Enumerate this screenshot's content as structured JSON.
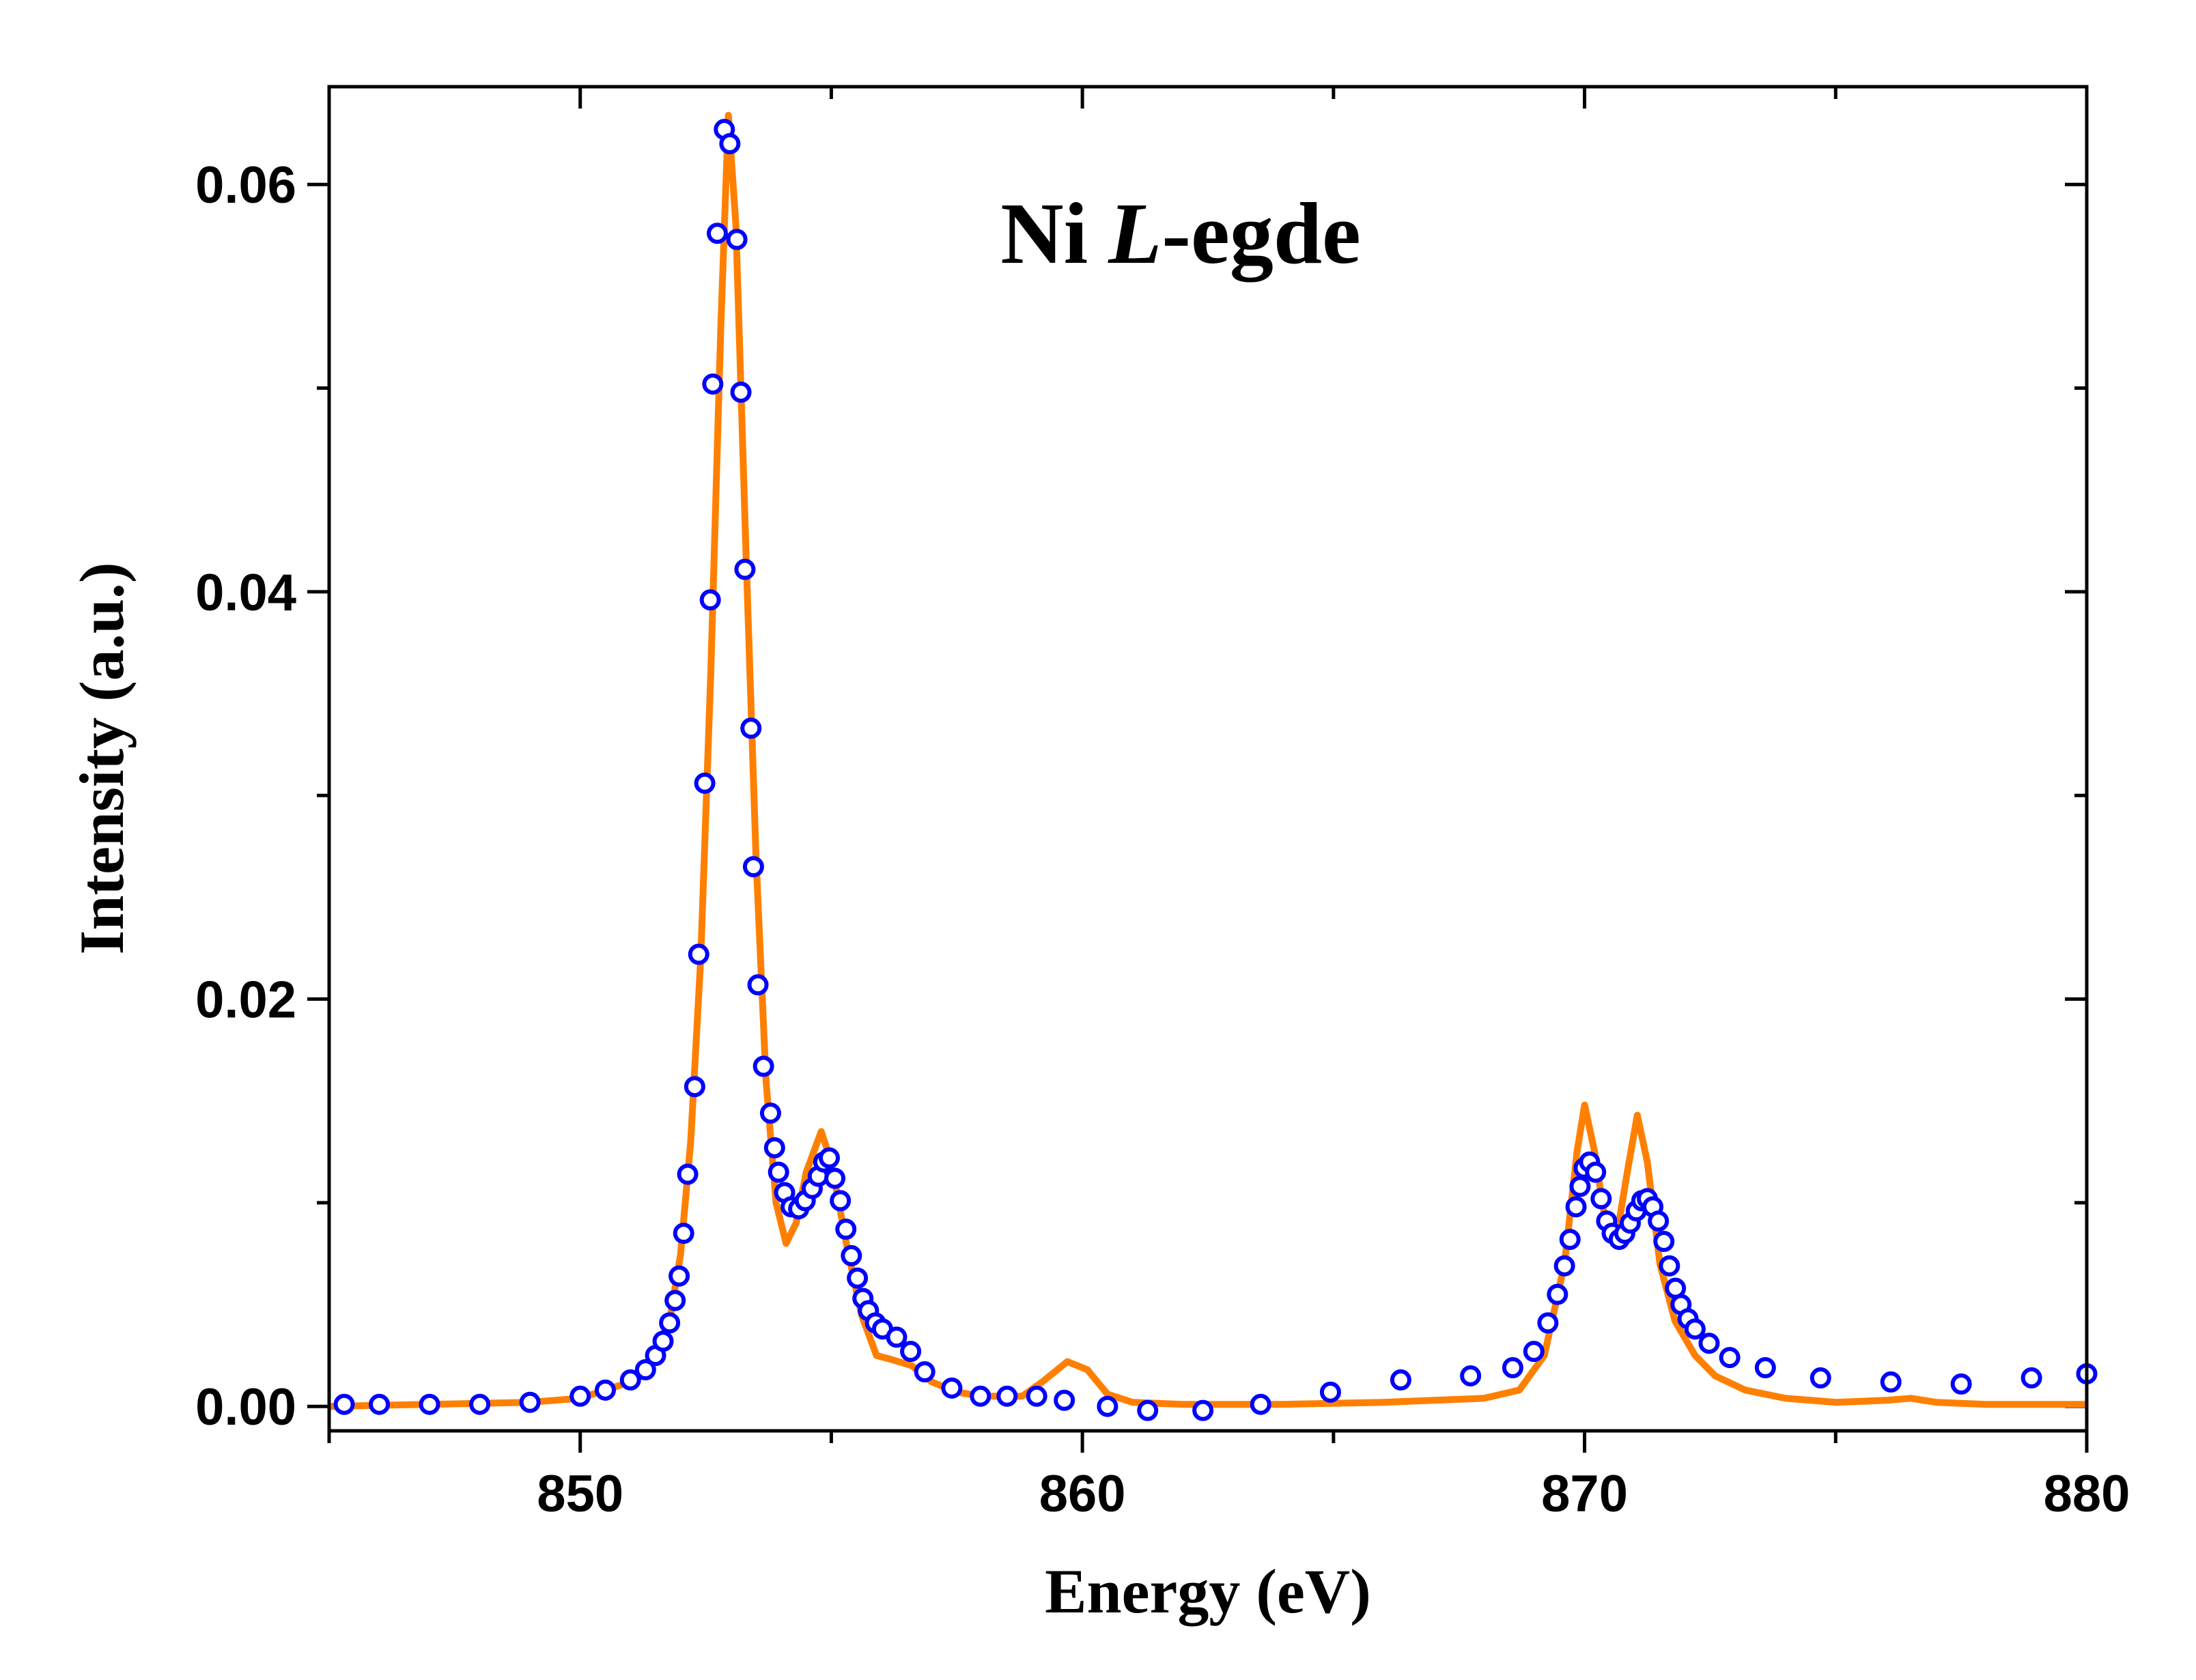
{
  "chart_data": {
    "type": "line",
    "title": [
      "Ni",
      "L",
      "-egde"
    ],
    "xlabel": "Energy (eV)",
    "ylabel": "Intensity (a.u.)",
    "xlim": [
      845,
      880
    ],
    "ylim": [
      -0.0012,
      0.0648
    ],
    "xticks": [
      850,
      860,
      870,
      880
    ],
    "xminorticks": [
      845,
      855,
      865,
      875
    ],
    "yticks": [
      {
        "value": 0,
        "label": "0.00"
      },
      0.02,
      0.04,
      0.06
    ],
    "yminorticks": [
      0.01,
      0.03,
      0.05
    ],
    "series": [
      {
        "color": "#ff8000",
        "style": "line",
        "x": [
          845,
          849,
          850,
          851,
          851.5,
          851.8,
          852.0,
          852.2,
          852.4,
          852.6,
          852.8,
          852.95,
          853.1,
          853.3,
          853.5,
          853.7,
          853.9,
          854.1,
          854.3,
          854.5,
          854.8,
          855.0,
          855.3,
          855.6,
          855.9,
          856.2,
          856.6,
          857,
          857.5,
          858,
          858.8,
          859.2,
          859.7,
          860.1,
          860.5,
          861,
          862,
          864,
          866,
          868,
          868.7,
          869.2,
          869.6,
          869.85,
          870.0,
          870.2,
          870.45,
          870.65,
          870.85,
          871.05,
          871.25,
          871.5,
          871.8,
          872.2,
          872.6,
          873.2,
          874,
          875,
          876,
          876.5,
          877,
          878,
          880
        ],
        "values": [
          0,
          0.0002,
          0.0004,
          0.0012,
          0.0025,
          0.0045,
          0.0075,
          0.013,
          0.022,
          0.036,
          0.053,
          0.0634,
          0.058,
          0.042,
          0.027,
          0.016,
          0.01,
          0.008,
          0.009,
          0.0115,
          0.0135,
          0.012,
          0.008,
          0.0045,
          0.0025,
          0.0023,
          0.002,
          0.0012,
          0.0007,
          0.0005,
          0.0005,
          0.0012,
          0.0022,
          0.0018,
          0.0006,
          0.0002,
          0.0001,
          0.0001,
          0.0002,
          0.0004,
          0.0008,
          0.0025,
          0.007,
          0.0125,
          0.0148,
          0.0125,
          0.0085,
          0.0085,
          0.0115,
          0.0143,
          0.012,
          0.007,
          0.0042,
          0.0025,
          0.0015,
          0.0008,
          0.0004,
          0.0002,
          0.0003,
          0.0004,
          0.0002,
          0.0001,
          0.0001
        ]
      },
      {
        "color": "#0000ff",
        "style": "marker",
        "x": [
          845.3,
          846,
          847,
          848,
          849,
          850,
          850.5,
          851,
          851.3,
          851.5,
          851.65,
          851.78,
          851.89,
          851.97,
          852.06,
          852.14,
          852.28,
          852.36,
          852.48,
          852.59,
          852.64,
          852.73,
          852.87,
          852.98,
          853.12,
          853.2,
          853.28,
          853.4,
          853.45,
          853.54,
          853.65,
          853.79,
          853.87,
          853.95,
          854.07,
          854.2,
          854.35,
          854.48,
          854.62,
          854.74,
          854.85,
          854.96,
          855.07,
          855.18,
          855.29,
          855.4,
          855.52,
          855.63,
          855.74,
          855.88,
          856.02,
          856.3,
          856.58,
          856.86,
          857.4,
          857.97,
          858.5,
          859.09,
          859.64,
          860.5,
          861.3,
          862.4,
          863.55,
          864.94,
          866.34,
          867.73,
          868.57,
          868.99,
          869.27,
          869.46,
          869.6,
          869.71,
          869.83,
          869.91,
          869.99,
          870.1,
          870.22,
          870.33,
          870.44,
          870.55,
          870.69,
          870.8,
          870.91,
          871.03,
          871.14,
          871.25,
          871.36,
          871.47,
          871.58,
          871.69,
          871.81,
          871.92,
          872.06,
          872.2,
          872.48,
          872.89,
          873.6,
          874.7,
          876.1,
          877.5,
          878.9,
          880
        ],
        "values": [
          0.0001,
          0.0001,
          0.0001,
          0.0001,
          0.0002,
          0.0005,
          0.0008,
          0.0013,
          0.0018,
          0.0025,
          0.0032,
          0.0041,
          0.0052,
          0.0064,
          0.0085,
          0.0114,
          0.0157,
          0.0222,
          0.0306,
          0.0396,
          0.0502,
          0.0576,
          0.0627,
          0.062,
          0.0573,
          0.0498,
          0.0411,
          0.0333,
          0.0265,
          0.0207,
          0.0167,
          0.0144,
          0.0127,
          0.0115,
          0.0105,
          0.0098,
          0.0097,
          0.0101,
          0.0107,
          0.0113,
          0.012,
          0.0122,
          0.0112,
          0.0101,
          0.0087,
          0.0074,
          0.0063,
          0.0053,
          0.0047,
          0.0041,
          0.0038,
          0.0034,
          0.0027,
          0.0017,
          0.0009,
          0.0005,
          0.0005,
          0.0005,
          0.0003,
          0,
          -0.0002,
          -0.0002,
          0.0001,
          0.0007,
          0.0013,
          0.0015,
          0.0019,
          0.0027,
          0.0041,
          0.0055,
          0.0069,
          0.0082,
          0.0098,
          0.0108,
          0.0117,
          0.012,
          0.0115,
          0.0102,
          0.0091,
          0.0085,
          0.0082,
          0.0085,
          0.009,
          0.0096,
          0.0101,
          0.0102,
          0.0098,
          0.0091,
          0.0081,
          0.0069,
          0.0058,
          0.005,
          0.0043,
          0.0038,
          0.0031,
          0.0024,
          0.0019,
          0.0014,
          0.0012,
          0.0011,
          0.0014,
          0.0016
        ]
      }
    ]
  }
}
